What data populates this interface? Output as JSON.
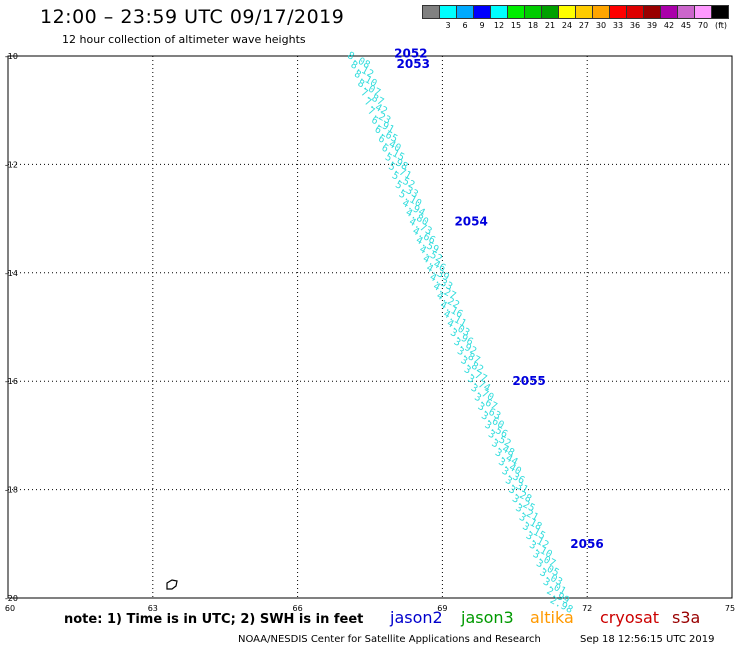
{
  "header": {
    "title": "12:00 – 23:59 UTC 09/17/2019",
    "subtitle": "12 hour collection of altimeter wave heights"
  },
  "legend": {
    "colors": [
      "#808080",
      "#00ffff",
      "#00aaff",
      "#0000ff",
      "#00ffff",
      "#00ee00",
      "#00cc00",
      "#00a000",
      "#ffff00",
      "#ffcc00",
      "#ffa500",
      "#ff0000",
      "#dd0000",
      "#990000",
      "#aa00aa",
      "#cc66cc",
      "#ff99ff",
      "#000000"
    ],
    "labels": [
      "3",
      "6",
      "9",
      "12",
      "15",
      "18",
      "21",
      "24",
      "27",
      "30",
      "33",
      "36",
      "39",
      "42",
      "45",
      "70"
    ],
    "unit": "(ft)"
  },
  "map": {
    "lat_labels": [
      "-10",
      "-12",
      "-14",
      "-16",
      "-18",
      "-20"
    ],
    "lon_labels": [
      "60",
      "63",
      "66",
      "69",
      "72",
      "75"
    ],
    "track_color": "#33dddd",
    "time_color": "#0000dd",
    "island_color": "#000000",
    "time_labels": [
      {
        "text": "2052",
        "lon": 68.0,
        "lat": -9.95
      },
      {
        "text": "2053",
        "lon": 68.05,
        "lat": -10.15
      },
      {
        "text": "2054",
        "lon": 69.25,
        "lat": -13.05
      },
      {
        "text": "2055",
        "lon": 70.45,
        "lat": -16.0
      },
      {
        "text": "2056",
        "lon": 71.65,
        "lat": -19.0
      }
    ],
    "track_values": [
      "8.08",
      "8.12",
      "8.10",
      "8.07",
      "7.87",
      "7.42",
      "7.23",
      "6.91",
      "6.65",
      "6.40",
      "6.15",
      "5.98",
      "5.71",
      "5.52",
      "5.33",
      "5.10",
      "4.94",
      "4.80",
      "4.73",
      "4.66",
      "4.59",
      "4.52",
      "4.46",
      "4.39",
      "4.33",
      "4.27",
      "4.22",
      "4.16",
      "4.11",
      "4.03",
      "3.96",
      "3.92",
      "3.87",
      "3.82",
      "3.77",
      "3.74",
      "3.70",
      "3.67",
      "3.63",
      "3.60",
      "3.56",
      "3.52",
      "3.48",
      "3.44",
      "3.40",
      "3.36",
      "3.31",
      "3.28",
      "3.25",
      "3.21",
      "3.18",
      "3.15",
      "3.12",
      "3.10",
      "3.07",
      "3.05",
      "3.03",
      "3.01",
      "2.99",
      "2.98"
    ]
  },
  "footer": {
    "note": "note: 1) Time is in UTC; 2) SWH is in feet",
    "satellites": [
      {
        "name": "jason2",
        "color": "#0000cc"
      },
      {
        "name": "jason3",
        "color": "#009900"
      },
      {
        "name": "altika",
        "color": "#ff9900"
      },
      {
        "name": "cryosat",
        "color": "#cc0000"
      },
      {
        "name": "s3a",
        "color": "#990000"
      }
    ],
    "credit": "NOAA/NESDIS Center for Satellite Applications and Research",
    "timestamp": "Sep 18 12:56:15 UTC 2019"
  }
}
